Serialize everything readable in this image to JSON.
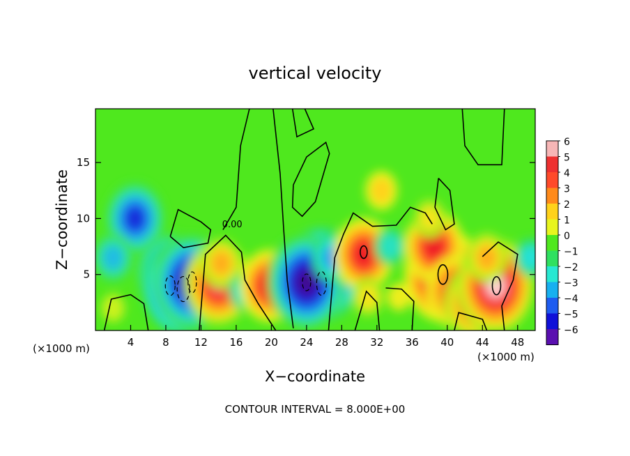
{
  "chart_data": {
    "type": "heatmap",
    "title": "vertical velocity",
    "xlabel": "X−coordinate",
    "ylabel": "Z−coordinate",
    "x_unit_left": "(×1000 m)",
    "x_unit_right": "(×1000 m)",
    "xlim": [
      0,
      50
    ],
    "ylim": [
      0,
      19.8
    ],
    "x_ticks": [
      4,
      8,
      12,
      16,
      20,
      24,
      28,
      32,
      36,
      40,
      44,
      48
    ],
    "y_ticks": [
      5,
      10,
      15
    ],
    "colorbar": {
      "levels": [
        6,
        5,
        4,
        3,
        2,
        1,
        0,
        -1,
        -2,
        -3,
        -4,
        -5,
        -6
      ],
      "labels": [
        "6",
        "5",
        "4",
        "3",
        "2",
        "1",
        "0",
        "−1",
        "−2",
        "−3",
        "−4",
        "−5",
        "−6"
      ],
      "colors": [
        "#f7b6b6",
        "#ee3030",
        "#ff4a2a",
        "#ff8a1a",
        "#ffd21a",
        "#e8f51e",
        "#4fe81e",
        "#2fe060",
        "#27e8d2",
        "#18b0f0",
        "#1e5cf0",
        "#1010d8",
        "#5a0fb0"
      ]
    },
    "contour_label": "0.00",
    "footer": "CONTOUR INTERVAL = 8.000E+00",
    "features": [
      {
        "x": 4.5,
        "z": 10.0,
        "value": -4.5
      },
      {
        "x": 2.0,
        "z": 6.5,
        "value": -2.5
      },
      {
        "x": 8.5,
        "z": 5.0,
        "value": -5.5
      },
      {
        "x": 9.8,
        "z": 3.8,
        "value": -7.0
      },
      {
        "x": 11.0,
        "z": 4.3,
        "value": -6.5
      },
      {
        "x": 14.0,
        "z": 4.2,
        "value": 5.5
      },
      {
        "x": 14.3,
        "z": 6.0,
        "value": 2.5
      },
      {
        "x": 17.0,
        "z": 3.5,
        "value": -2.0
      },
      {
        "x": 19.8,
        "z": 4.0,
        "value": 5.0
      },
      {
        "x": 23.5,
        "z": 4.8,
        "value": -5.5
      },
      {
        "x": 25.7,
        "z": 5.0,
        "value": -7.0
      },
      {
        "x": 24.0,
        "z": 4.3,
        "value": -6.5
      },
      {
        "x": 27.0,
        "z": 6.5,
        "value": -3.0
      },
      {
        "x": 30.5,
        "z": 6.8,
        "value": 5.0
      },
      {
        "x": 31.0,
        "z": 3.0,
        "value": 1.5
      },
      {
        "x": 33.5,
        "z": 7.5,
        "value": -1.8
      },
      {
        "x": 32.5,
        "z": 12.5,
        "value": 2.0
      },
      {
        "x": 34.5,
        "z": 3.0,
        "value": 1.2
      },
      {
        "x": 39.5,
        "z": 5.0,
        "value": 7.0
      },
      {
        "x": 38.5,
        "z": 7.5,
        "value": 5.0
      },
      {
        "x": 41.0,
        "z": 3.5,
        "value": 5.0
      },
      {
        "x": 43.0,
        "z": 2.5,
        "value": 4.5
      },
      {
        "x": 45.5,
        "z": 4.0,
        "value": 6.5
      },
      {
        "x": 38.0,
        "z": 10.0,
        "value": 1.5
      },
      {
        "x": 44.5,
        "z": 6.5,
        "value": 2.5
      },
      {
        "x": 2.0,
        "z": 2.0,
        "value": 0.8
      },
      {
        "x": 49.5,
        "z": 6.5,
        "value": -2.0
      }
    ]
  }
}
